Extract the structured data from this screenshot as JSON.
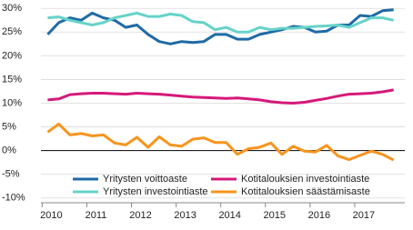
{
  "chart_data": {
    "type": "line",
    "x": [
      2010,
      2010.25,
      2010.5,
      2010.75,
      2011,
      2011.25,
      2011.5,
      2011.75,
      2012,
      2012.25,
      2012.5,
      2012.75,
      2013,
      2013.25,
      2013.5,
      2013.75,
      2014,
      2014.25,
      2014.5,
      2014.75,
      2015,
      2015.25,
      2015.5,
      2015.75,
      2016,
      2016.25,
      2016.5,
      2016.75,
      2017,
      2017.25,
      2017.5,
      2017.75
    ],
    "series": [
      {
        "name": "Yritysten voittoaste",
        "color": "#1f6aa5",
        "values": [
          24.5,
          27,
          28,
          27.5,
          29,
          28,
          27.5,
          26,
          26.5,
          24.5,
          23,
          22.5,
          23,
          22.8,
          23,
          24.5,
          24.5,
          23.5,
          23.5,
          24.5,
          25,
          25.5,
          26.2,
          26,
          25,
          25.2,
          26.5,
          26.5,
          28.5,
          28.3,
          29.5,
          29.7
        ]
      },
      {
        "name": "Yritysten investointiaste",
        "color": "#66d3c9",
        "values": [
          28,
          28.2,
          27.5,
          27,
          26.5,
          27,
          28,
          28.5,
          29,
          28.3,
          28.3,
          28.8,
          28.5,
          27.2,
          27,
          25.5,
          26,
          25,
          25,
          26,
          25.5,
          25.8,
          25.8,
          26,
          26.2,
          26.3,
          26.5,
          26,
          27,
          28,
          28,
          27.5
        ]
      },
      {
        "name": "Kotitalouksien investointiaste",
        "color": "#d6197a",
        "values": [
          10.7,
          10.9,
          11.8,
          12,
          12.1,
          12.1,
          12,
          11.9,
          12.1,
          12,
          11.9,
          11.7,
          11.5,
          11.3,
          11.2,
          11.1,
          11,
          11.1,
          10.9,
          10.7,
          10.3,
          10.1,
          10,
          10.2,
          10.6,
          11,
          11.5,
          11.9,
          12,
          12.1,
          12.4,
          12.8
        ]
      },
      {
        "name": "Kotitalouksien säästämisaste",
        "color": "#f7941d",
        "values": [
          3.9,
          5.6,
          3.3,
          3.6,
          3.1,
          3.3,
          1.6,
          1.2,
          2.8,
          0.7,
          2.9,
          1.2,
          0.9,
          2.4,
          2.7,
          1.7,
          1.7,
          -0.8,
          0.4,
          0.7,
          1.6,
          -0.8,
          0.9,
          -0.1,
          -0.3,
          1.1,
          -1.1,
          -1.9,
          -1.0,
          -0.1,
          -0.8,
          -2.0
        ]
      }
    ],
    "xlim": [
      2009.85,
      2018.0
    ],
    "xticks": [
      2010,
      2011,
      2012,
      2013,
      2014,
      2015,
      2016,
      2017
    ],
    "ylim": [
      -11,
      31
    ],
    "yticks": [
      {
        "value": 30,
        "label": "30%"
      },
      {
        "value": 25,
        "label": "25%"
      },
      {
        "value": 20,
        "label": "20%"
      },
      {
        "value": 15,
        "label": "15%"
      },
      {
        "value": 10,
        "label": "10%"
      },
      {
        "value": 5,
        "label": "5%"
      },
      {
        "value": 0,
        "label": "0%"
      },
      {
        "value": -5,
        "label": "-5%"
      },
      {
        "value": -10,
        "label": "-10%"
      }
    ],
    "grid": true
  }
}
